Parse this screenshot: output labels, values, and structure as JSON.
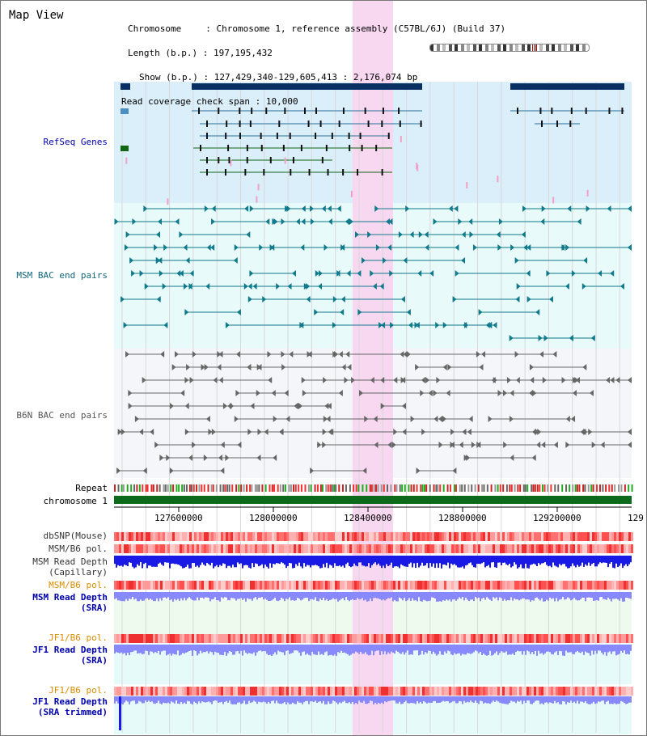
{
  "page": {
    "title": "Map View"
  },
  "header": {
    "chromosome_label": "Chromosome",
    "chromosome_value": "Chromosome 1, reference assembly (C57BL/6J) (Build 37)",
    "length_label": "Length (b.p.)",
    "length_value": "197,195,432",
    "show_label": "Show (b.p.)",
    "show_value": "127,429,340-129,605,413 : 2,176,074 bp",
    "span_label": "Read coverage check span",
    "span_value": "10,000"
  },
  "tracks": {
    "refseq": "RefSeq Genes",
    "msm_bac": "MSM BAC end pairs",
    "b6n_bac": "B6N BAC end pairs",
    "repeat": "Repeat",
    "chromosome": "chromosome 1",
    "dbsnp": "dbSNP(Mouse)",
    "msm_b6_pol_1": "MSM/B6 pol.",
    "msm_depth_cap_1": "MSM Read Depth",
    "msm_depth_cap_2": "(Capillary)",
    "msm_b6_pol_2": "MSM/B6 pol.",
    "msm_depth_sra_1": "MSM Read Depth",
    "msm_depth_sra_2": "(SRA)",
    "jf1_b6_pol_1": "JF1/B6 pol.",
    "jf1_depth_sra_1": "JF1 Read Depth",
    "jf1_depth_sra_2": "(SRA)",
    "jf1_b6_pol_2": "JF1/B6 pol.",
    "jf1_depth_trim_1": "JF1 Read Depth",
    "jf1_depth_trim_2": "(SRA trimmed)"
  },
  "axis": {
    "ticks": [
      "127600000",
      "128000000",
      "128400000",
      "128800000",
      "129200000",
      "129"
    ]
  },
  "colors": {
    "refseq_bg": "#dbeffa",
    "msm_bg": "#e8fafa",
    "b6n_bg": "#f4f6f9",
    "highlight": "#f8d8f0",
    "gene_dark": "#0a2f63",
    "gene_green": "#116611",
    "msm_line": "#117a8c",
    "b6n_line": "#666666",
    "depth_blue": "#1a1ae6",
    "depth_light": "#8888ff",
    "chrom_green": "#0c6a1a"
  }
}
